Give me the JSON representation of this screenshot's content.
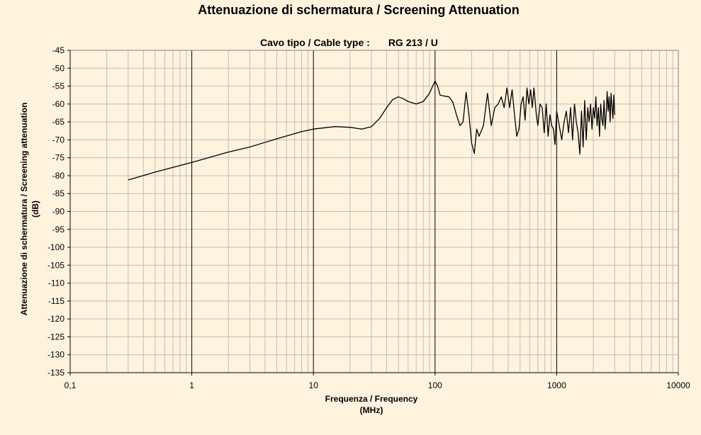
{
  "chart_data": {
    "type": "line",
    "title": "Attenuazione di schermatura / Screening Attenuation",
    "subtitle_label": "Cavo tipo / Cable type :",
    "subtitle_value": "RG 213 / U",
    "xlabel_line1": "Frequenza / Frequency",
    "xlabel_line2": "(MHz)",
    "ylabel_line1": "Attenuazione di schermatura / Screening attenuation",
    "ylabel_line2": "(dB)",
    "x_scale": "log",
    "xlim": [
      0.1,
      10000
    ],
    "ylim": [
      -135,
      -45
    ],
    "y_tick_step": 5,
    "x_ticks": [
      0.1,
      1,
      10,
      100,
      1000,
      10000
    ],
    "x_tick_labels": [
      "0,1",
      "1",
      "10",
      "100",
      "1000",
      "10000"
    ],
    "grid": true,
    "legend": "none",
    "series": [
      {
        "color": "#000000",
        "x": [
          0.3,
          0.5,
          1,
          2,
          3,
          5,
          8,
          10,
          15,
          20,
          25,
          30,
          35,
          40,
          45,
          50,
          55,
          60,
          70,
          80,
          90,
          95,
          100,
          105,
          110,
          120,
          130,
          140,
          150,
          160,
          170,
          180,
          190,
          200,
          210,
          220,
          230,
          250,
          270,
          290,
          310,
          330,
          350,
          370,
          390,
          410,
          430,
          450,
          470,
          490,
          510,
          530,
          550,
          570,
          590,
          610,
          630,
          650,
          680,
          700,
          730,
          760,
          790,
          820,
          850,
          880,
          910,
          940,
          970,
          1000,
          1050,
          1100,
          1150,
          1200,
          1250,
          1300,
          1350,
          1400,
          1450,
          1500,
          1550,
          1600,
          1650,
          1700,
          1750,
          1800,
          1850,
          1900,
          1950,
          2000,
          2050,
          2100,
          2150,
          2200,
          2250,
          2300,
          2350,
          2400,
          2450,
          2500,
          2550,
          2600,
          2650,
          2700,
          2750,
          2800,
          2850,
          2900,
          2950,
          3000
        ],
        "y": [
          -81.2,
          -79,
          -76.3,
          -73.4,
          -72,
          -69.7,
          -67.7,
          -67,
          -66.3,
          -66.5,
          -67,
          -66.3,
          -64,
          -61,
          -58.7,
          -58,
          -58.5,
          -59.3,
          -60,
          -59.3,
          -57,
          -55.2,
          -53.6,
          -55,
          -57.5,
          -57.8,
          -58,
          -59.5,
          -63,
          -66,
          -65,
          -56.7,
          -63,
          -71,
          -73.8,
          -67,
          -69,
          -66,
          -57,
          -66,
          -61,
          -60,
          -58,
          -61,
          -55.5,
          -61,
          -56,
          -63,
          -69,
          -67,
          -60,
          -58,
          -64.5,
          -55.5,
          -60,
          -56,
          -61,
          -55.5,
          -63,
          -66,
          -60,
          -61,
          -68,
          -60,
          -69,
          -63,
          -66,
          -67,
          -71.3,
          -62,
          -66,
          -70,
          -65,
          -62,
          -68,
          -61,
          -70,
          -60,
          -65,
          -68,
          -74,
          -62,
          -72,
          -59,
          -70,
          -61,
          -65,
          -60,
          -67,
          -61,
          -64,
          -58,
          -66,
          -61,
          -69,
          -60,
          -64,
          -66,
          -59,
          -67,
          -63,
          -56.5,
          -62,
          -58,
          -65,
          -57,
          -61,
          -64,
          -57.5,
          -63
        ]
      }
    ]
  }
}
